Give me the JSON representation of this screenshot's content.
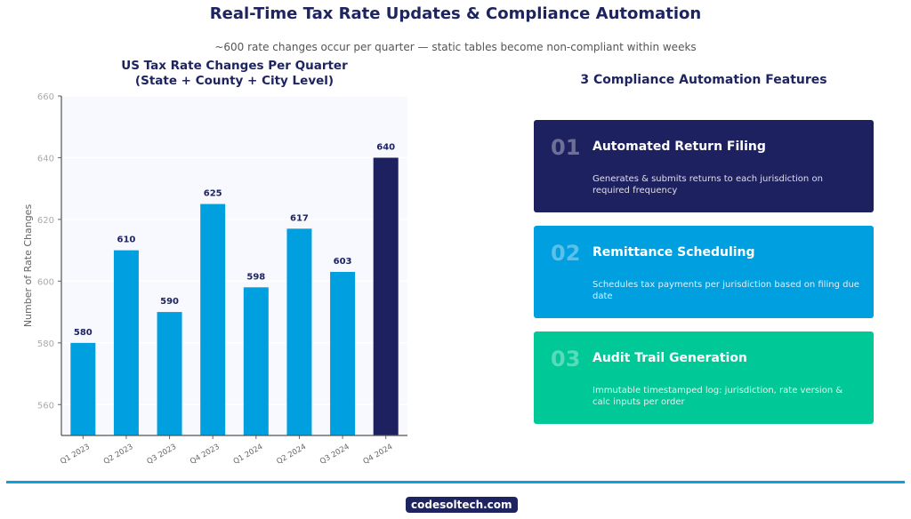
{
  "header": {
    "title": "Real-Time Tax Rate Updates & Compliance Automation",
    "subtitle": "~600 rate changes occur per quarter — static tables become non-compliant within weeks"
  },
  "chart_data": {
    "type": "bar",
    "title": "US Tax Rate Changes Per Quarter\n(State + County + City Level)",
    "title_lines": [
      "US Tax Rate Changes Per Quarter",
      "(State + County + City Level)"
    ],
    "xlabel": "",
    "ylabel": "Number of Rate Changes",
    "categories": [
      "Q1 2023",
      "Q2 2023",
      "Q3 2023",
      "Q4 2023",
      "Q1 2024",
      "Q2 2024",
      "Q3 2024",
      "Q4 2024"
    ],
    "values": [
      580,
      610,
      590,
      625,
      598,
      617,
      603,
      640
    ],
    "ylim": [
      550,
      660
    ],
    "yticks": [
      560,
      580,
      600,
      620,
      640,
      660
    ],
    "grid": true,
    "colors": {
      "default": "#009fe0",
      "highlight": "#1e2160",
      "label": "#1e2460"
    },
    "highlight_index": 7
  },
  "features": {
    "title": "3 Compliance Automation Features",
    "items": [
      {
        "num": "01",
        "title": "Automated Return Filing",
        "desc": "Generates & submits returns to each jurisdiction on required frequency",
        "color": "#1e2160"
      },
      {
        "num": "02",
        "title": "Remittance Scheduling",
        "desc": "Schedules tax payments per jurisdiction based on filing due date",
        "color": "#009fe0"
      },
      {
        "num": "03",
        "title": "Audit Trail Generation",
        "desc": "Immutable timestamped log: jurisdiction, rate version & calc inputs per order",
        "color": "#00c896"
      }
    ]
  },
  "footer": {
    "brand": "codesoltech.com"
  }
}
